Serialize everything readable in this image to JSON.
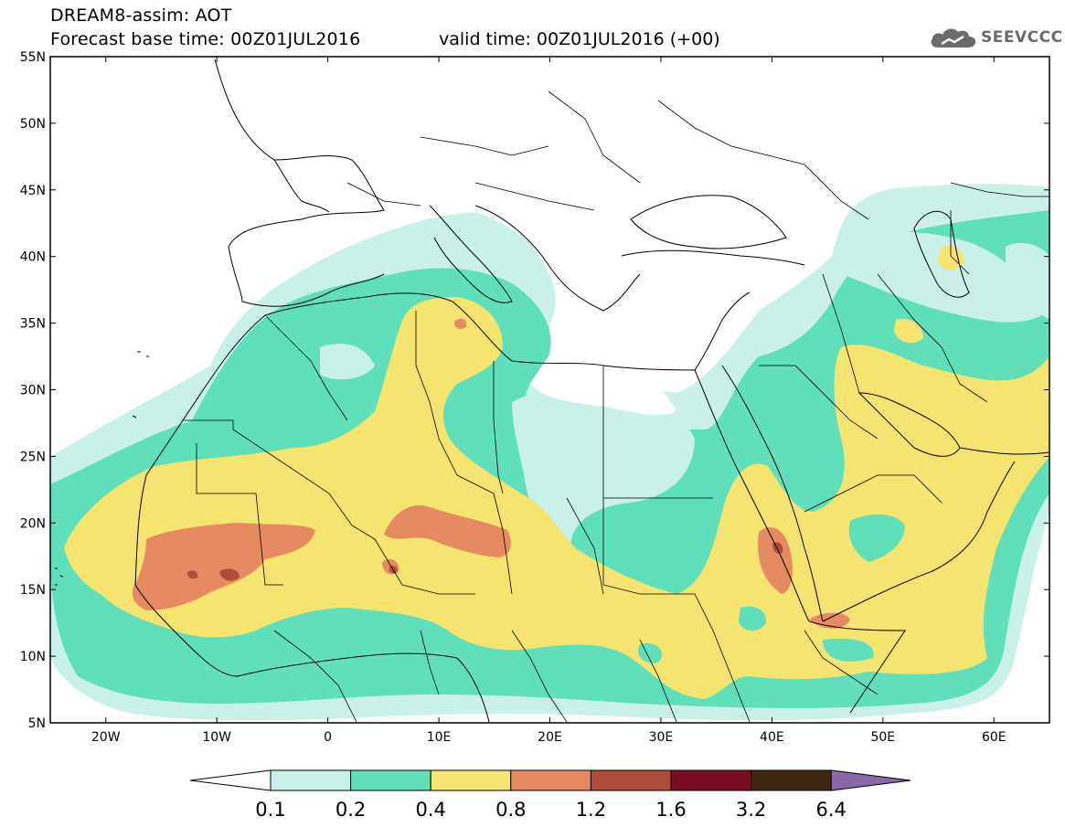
{
  "header": {
    "title": "DREAM8-assim: AOT",
    "base_time": "Forecast base time: 00Z01JUL2016",
    "valid_time": "valid time: 00Z01JUL2016 (+00)",
    "logo_text": "SEEVCCC"
  },
  "map": {
    "lat_labels": [
      "55N",
      "50N",
      "45N",
      "40N",
      "35N",
      "30N",
      "25N",
      "20N",
      "15N",
      "10N",
      "5N"
    ],
    "lon_labels": [
      "20W",
      "10W",
      "0",
      "10E",
      "20E",
      "30E",
      "40E",
      "50E",
      "60E"
    ],
    "extent": {
      "lon_min": -25,
      "lon_max": 65,
      "lat_min": 5,
      "lat_max": 55
    }
  },
  "colorbar": {
    "labels": [
      "0.1",
      "0.2",
      "0.4",
      "0.8",
      "1.2",
      "1.6",
      "3.2",
      "6.4"
    ],
    "colors": [
      "#ffffff",
      "#c9f1ea",
      "#5fe0bb",
      "#f5e470",
      "#e68a62",
      "#b04c3c",
      "#7a0c22",
      "#3d2612",
      "#8c68a8"
    ]
  },
  "palette": {
    "aot_0_1_0_2": "#c9f1ea",
    "aot_0_2_0_4": "#5fe0bb",
    "aot_0_4_0_8": "#f5e470",
    "aot_0_8_1_2": "#e68a62",
    "aot_1_2_1_6": "#b04c3c",
    "aot_1_6_3_2": "#7a0c22",
    "aot_3_2_6_4": "#3d2612"
  }
}
